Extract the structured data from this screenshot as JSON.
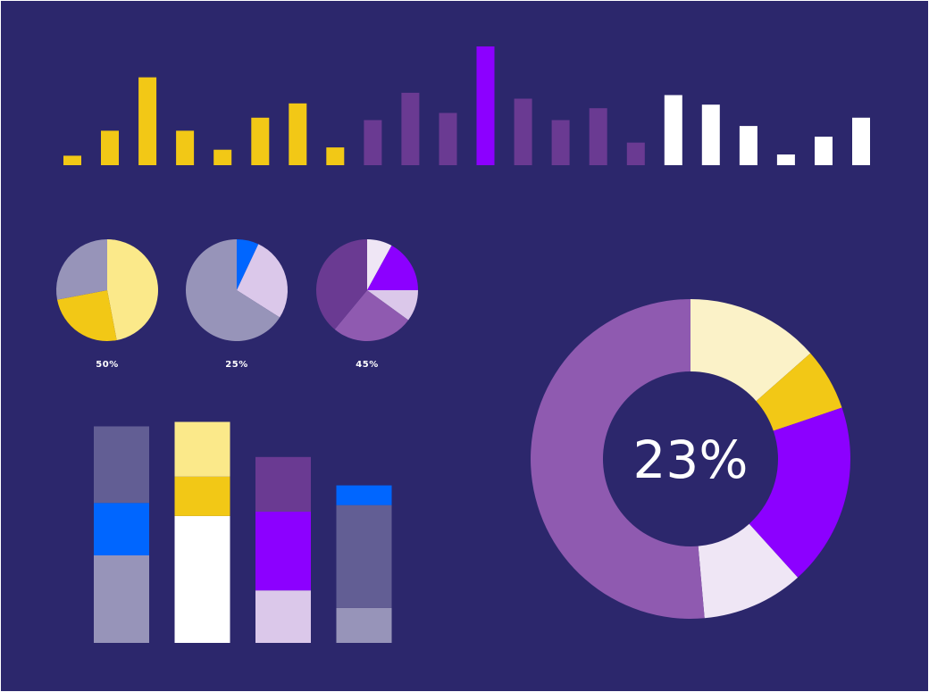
{
  "colors": {
    "background": "#2c276c",
    "yellow": "#f2c816",
    "light_yellow": "#fbe98a",
    "pale_yellow": "#fbf2c8",
    "purple_mid": "#6a3a92",
    "purple_vivid": "#8c00ff",
    "purple_light": "#8f5ab0",
    "lavender": "#dbc8ea",
    "lavender_pale": "#efe6f5",
    "slate": "#625e94",
    "grey_lavender": "#9794b9",
    "blue": "#0066ff",
    "white": "#ffffff"
  },
  "chart_data": [
    {
      "type": "bar",
      "id": "top-bars",
      "axes": "none",
      "grid": false,
      "ylim": [
        0,
        1
      ],
      "series": [
        {
          "color_key": "yellow",
          "values": [
            0.08,
            0.29,
            0.74,
            0.29,
            0.13,
            0.4,
            0.52,
            0.15
          ]
        },
        {
          "color_key": "purple_mid",
          "values": [
            0.38,
            0.61,
            0.44,
            null,
            0.56,
            0.38,
            0.48,
            0.19
          ]
        },
        {
          "color_key": "purple_vivid",
          "values": [
            null,
            null,
            null,
            1.0,
            null,
            null,
            null,
            null
          ]
        },
        {
          "color_key": "white",
          "values": [
            0.59,
            0.51,
            0.33,
            0.09,
            0.24,
            0.4
          ]
        }
      ]
    },
    {
      "type": "pie",
      "id": "pie-small-1",
      "label": "50%",
      "slices": [
        {
          "value": 47,
          "color_key": "light_yellow"
        },
        {
          "value": 25,
          "color_key": "yellow"
        },
        {
          "value": 28,
          "color_key": "grey_lavender"
        }
      ]
    },
    {
      "type": "pie",
      "id": "pie-small-2",
      "label": "25%",
      "slices": [
        {
          "value": 7,
          "color_key": "blue"
        },
        {
          "value": 27,
          "color_key": "lavender"
        },
        {
          "value": 66,
          "color_key": "grey_lavender"
        }
      ]
    },
    {
      "type": "pie",
      "id": "pie-small-3",
      "label": "45%",
      "slices": [
        {
          "value": 8,
          "color_key": "lavender_pale"
        },
        {
          "value": 17,
          "color_key": "purple_vivid"
        },
        {
          "value": 10,
          "color_key": "lavender"
        },
        {
          "value": 26,
          "color_key": "purple_light"
        },
        {
          "value": 39,
          "color_key": "purple_mid"
        }
      ]
    },
    {
      "type": "bar",
      "id": "stacked-bars",
      "stacked": true,
      "axes": "none",
      "grid": false,
      "ylim": [
        0,
        100
      ],
      "columns": [
        {
          "segments": [
            {
              "value": 40,
              "color_key": "grey_lavender"
            },
            {
              "value": 24,
              "color_key": "blue"
            },
            {
              "value": 35,
              "color_key": "slate"
            }
          ]
        },
        {
          "segments": [
            {
              "value": 58,
              "color_key": "white"
            },
            {
              "value": 18,
              "color_key": "yellow"
            },
            {
              "value": 25,
              "color_key": "light_yellow"
            }
          ]
        },
        {
          "segments": [
            {
              "value": 24,
              "color_key": "lavender"
            },
            {
              "value": 36,
              "color_key": "purple_vivid"
            },
            {
              "value": 25,
              "color_key": "purple_mid"
            }
          ]
        },
        {
          "segments": [
            {
              "value": 16,
              "color_key": "grey_lavender"
            },
            {
              "value": 47,
              "color_key": "slate"
            },
            {
              "value": 9,
              "color_key": "blue"
            }
          ]
        }
      ]
    },
    {
      "type": "pie",
      "id": "donut",
      "donut": true,
      "center_label": "23%",
      "slices": [
        {
          "value": 13.5,
          "color_key": "pale_yellow"
        },
        {
          "value": 6.3,
          "color_key": "yellow"
        },
        {
          "value": 18.5,
          "color_key": "purple_vivid"
        },
        {
          "value": 10.3,
          "color_key": "lavender_pale"
        },
        {
          "value": 51.4,
          "color_key": "purple_light"
        }
      ]
    }
  ]
}
